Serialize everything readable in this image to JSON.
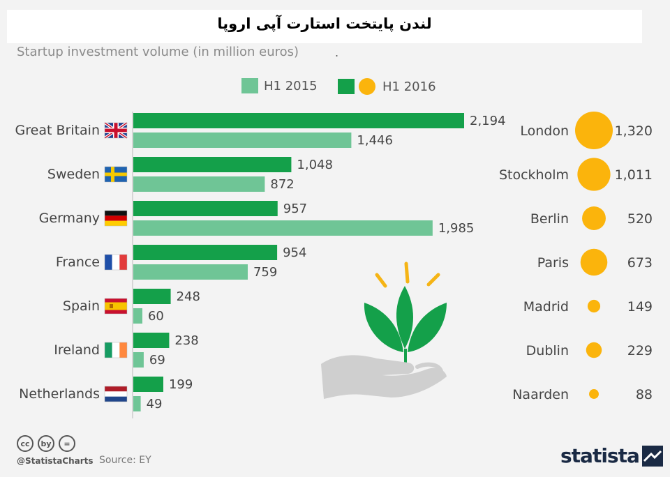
{
  "title": "لندن پایتخت استارت آپی اروپا",
  "subtitle": "Startup investment volume (in million euros)",
  "subtitle_mark": ".",
  "legend": {
    "h1_2015": "H1 2015",
    "h1_2016": "H1 2016"
  },
  "colors": {
    "h1_2016": "#14a04a",
    "h1_2015": "#6fc596",
    "city_bubble": "#fbb40c",
    "axis": "#cccccc"
  },
  "chart_data": {
    "type": "bar",
    "orientation": "horizontal",
    "categories": [
      "Great Britain",
      "Sweden",
      "Germany",
      "France",
      "Spain",
      "Ireland",
      "Netherlands"
    ],
    "flag_icons": [
      "uk-flag-icon",
      "sweden-flag-icon",
      "germany-flag-icon",
      "france-flag-icon",
      "spain-flag-icon",
      "ireland-flag-icon",
      "netherlands-flag-icon"
    ],
    "series": [
      {
        "name": "H1 2016",
        "values": [
          2194,
          1048,
          957,
          954,
          248,
          238,
          199
        ]
      },
      {
        "name": "H1 2015",
        "values": [
          1446,
          872,
          1985,
          759,
          60,
          69,
          49
        ]
      }
    ],
    "value_labels_2016": [
      "2,194",
      "1,048",
      "957",
      "954",
      "248",
      "238",
      "199"
    ],
    "value_labels_2015": [
      "1,446",
      "872",
      "1,985",
      "759",
      "60",
      "69",
      "49"
    ],
    "xlim": [
      0,
      2194
    ],
    "legend_position": "top-center",
    "cities": {
      "names": [
        "London",
        "Stockholm",
        "Berlin",
        "Paris",
        "Madrid",
        "Dublin",
        "Naarden"
      ],
      "values": [
        1320,
        1011,
        520,
        673,
        149,
        229,
        88
      ],
      "value_labels": [
        "1,320",
        "1,011",
        "520",
        "673",
        "149",
        "229",
        "88"
      ],
      "series": "H1 2016"
    }
  },
  "footer": {
    "cc_icons": [
      "cc",
      "by",
      "="
    ],
    "handle": "@StatistaCharts",
    "source": "Source: EY",
    "brand": "statista"
  }
}
